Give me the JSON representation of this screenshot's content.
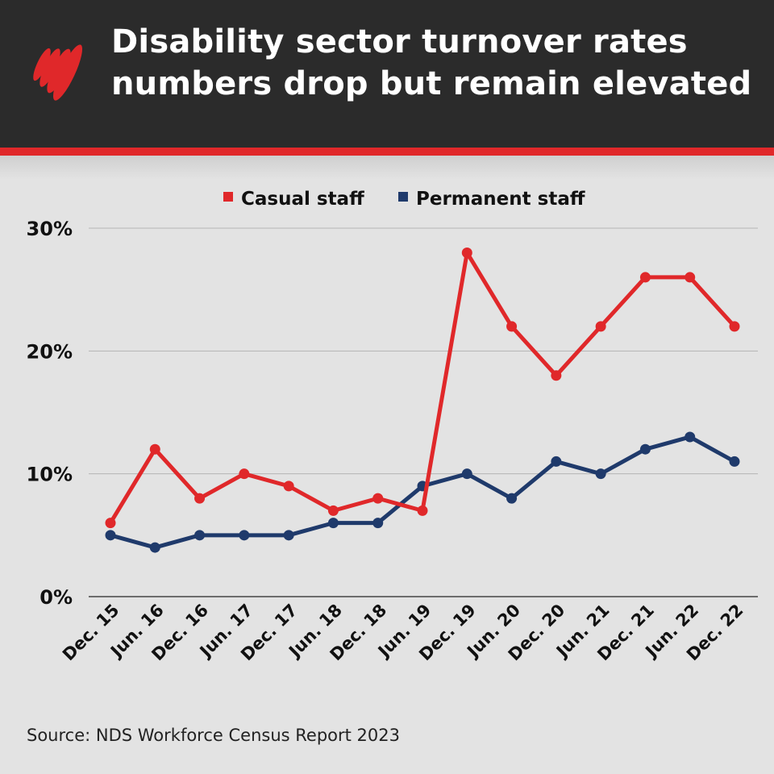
{
  "header": {
    "title_line1": "Disability sector turnover rates",
    "title_line2": "numbers drop but remain elevated",
    "logo": "sbs-logo"
  },
  "source": "Source: NDS Workforce Census Report 2023",
  "chart_data": {
    "type": "line",
    "categories": [
      "Dec. 15",
      "Jun. 16",
      "Dec. 16",
      "Jun. 17",
      "Dec. 17",
      "Jun. 18",
      "Dec. 18",
      "Jun. 19",
      "Dec. 19",
      "Jun. 20",
      "Dec. 20",
      "Jun. 21",
      "Dec. 21",
      "Jun. 22",
      "Dec. 22"
    ],
    "series": [
      {
        "name": "Casual staff",
        "color": "#e0282a",
        "values": [
          6,
          12,
          8,
          10,
          9,
          7,
          8,
          7,
          28,
          22,
          18,
          22,
          26,
          26,
          22
        ]
      },
      {
        "name": "Permanent staff",
        "color": "#1f3a6b",
        "values": [
          5,
          4,
          5,
          5,
          5,
          6,
          6,
          9,
          10,
          8,
          11,
          10,
          12,
          13,
          11
        ]
      }
    ],
    "yticks": [
      "0%",
      "10%",
      "20%",
      "30%"
    ],
    "ytick_values": [
      0,
      10,
      20,
      30
    ],
    "ylim": [
      0,
      30
    ],
    "grid": true,
    "legend_placement": "top-center"
  }
}
